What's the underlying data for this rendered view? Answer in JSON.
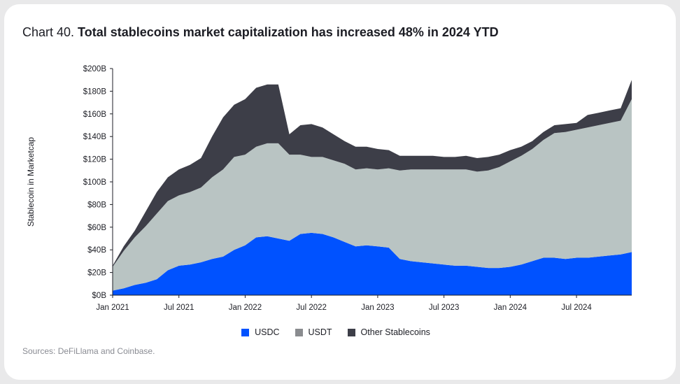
{
  "title": {
    "prefix": "Chart 40. ",
    "main": "Total stablecoins market capitalization has increased 48% in 2024 YTD"
  },
  "source": "Sources: DeFiLlama and Coinbase.",
  "chart_data": {
    "type": "area",
    "stacked": true,
    "ylabel": "Stablecoin in Marketcap",
    "xlabel": "",
    "ylim": [
      0,
      200
    ],
    "y_unit": "billion USD",
    "yticks": [
      "$0B",
      "$20B",
      "$40B",
      "$60B",
      "$80B",
      "$100B",
      "$120B",
      "$140B",
      "$160B",
      "$180B",
      "$200B"
    ],
    "xticks": [
      "Jan 2021",
      "Jul 2021",
      "Jan 2022",
      "Jul 2022",
      "Jan 2023",
      "Jul 2023",
      "Jan 2024",
      "Jul 2024"
    ],
    "x": [
      "2021-01",
      "2021-02",
      "2021-03",
      "2021-04",
      "2021-05",
      "2021-06",
      "2021-07",
      "2021-08",
      "2021-09",
      "2021-10",
      "2021-11",
      "2021-12",
      "2022-01",
      "2022-02",
      "2022-03",
      "2022-04",
      "2022-05",
      "2022-06",
      "2022-07",
      "2022-08",
      "2022-09",
      "2022-10",
      "2022-11",
      "2022-12",
      "2023-01",
      "2023-02",
      "2023-03",
      "2023-04",
      "2023-05",
      "2023-06",
      "2023-07",
      "2023-08",
      "2023-09",
      "2023-10",
      "2023-11",
      "2023-12",
      "2024-01",
      "2024-02",
      "2024-03",
      "2024-04",
      "2024-05",
      "2024-06",
      "2024-07",
      "2024-08",
      "2024-09",
      "2024-10",
      "2024-11",
      "2024-12"
    ],
    "series": [
      {
        "name": "USDC",
        "color": "#0052ff",
        "values": [
          4,
          6,
          9,
          11,
          14,
          22,
          26,
          27,
          29,
          32,
          34,
          40,
          44,
          51,
          52,
          50,
          48,
          54,
          55,
          54,
          51,
          47,
          43,
          44,
          43,
          42,
          32,
          30,
          29,
          28,
          27,
          26,
          26,
          25,
          24,
          24,
          25,
          27,
          30,
          33,
          33,
          32,
          33,
          33,
          34,
          35,
          36,
          38
        ]
      },
      {
        "name": "USDT",
        "color": "#8a8c8f",
        "area_color": "#b9c4c3",
        "values": [
          21,
          33,
          42,
          50,
          58,
          61,
          62,
          64,
          66,
          72,
          77,
          82,
          80,
          80,
          82,
          84,
          76,
          70,
          67,
          68,
          68,
          69,
          68,
          68,
          68,
          70,
          78,
          81,
          82,
          83,
          84,
          85,
          85,
          84,
          86,
          89,
          93,
          96,
          99,
          104,
          110,
          112,
          113,
          115,
          116,
          117,
          118,
          135
        ]
      },
      {
        "name": "Other Stablecoins",
        "color": "#3d3e48",
        "values": [
          1,
          4,
          6,
          13,
          19,
          21,
          23,
          24,
          26,
          36,
          46,
          46,
          49,
          52,
          52,
          52,
          18,
          26,
          29,
          26,
          23,
          20,
          20,
          19,
          18,
          16,
          13,
          12,
          12,
          12,
          11,
          11,
          12,
          12,
          12,
          11,
          10,
          8,
          7,
          7,
          7,
          7,
          6,
          11,
          11,
          11,
          11,
          17
        ]
      }
    ],
    "legend_position": "bottom",
    "grid": false
  }
}
